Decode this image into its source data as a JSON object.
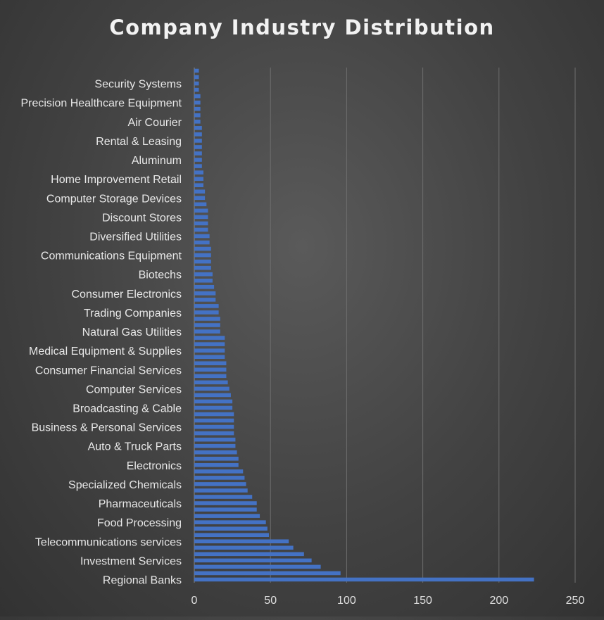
{
  "chart_data": {
    "type": "bar",
    "orientation": "horizontal",
    "title": "Company Industry Distribution",
    "xlabel": "",
    "ylabel": "",
    "xlim": [
      0,
      250
    ],
    "xticks": [
      0,
      50,
      100,
      150,
      200,
      250
    ],
    "grid": "vertical",
    "legend": "none",
    "bar_color": "#4472c4",
    "categories": [
      "Regional Banks",
      "",
      "",
      "Investment Services",
      "",
      "",
      "Telecommunications services",
      "",
      "",
      "Food Processing",
      "",
      "",
      "Pharmaceuticals",
      "",
      "",
      "Specialized Chemicals",
      "",
      "",
      "Electronics",
      "",
      "",
      "Auto & Truck Parts",
      "",
      "",
      "Business & Personal Services",
      "",
      "",
      "Broadcasting & Cable",
      "",
      "",
      "Computer Services",
      "",
      "",
      "Consumer Financial Services",
      "",
      "",
      "Medical Equipment & Supplies",
      "",
      "",
      "Natural Gas Utilities",
      "",
      "",
      "Trading Companies",
      "",
      "",
      "Consumer Electronics",
      "",
      "",
      "Biotechs",
      "",
      "",
      "Communications Equipment",
      "",
      "",
      "Diversified Utilities",
      "",
      "",
      "Discount Stores",
      "",
      "",
      "Computer Storage Devices",
      "",
      "",
      "Home Improvement Retail",
      "",
      "",
      "Aluminum",
      "",
      "",
      "Rental & Leasing",
      "",
      "",
      "Air Courier",
      "",
      "",
      "Precision Healthcare Equipment",
      "",
      "",
      "Security Systems",
      "",
      ""
    ],
    "values": [
      223,
      96,
      83,
      77,
      72,
      65,
      62,
      49,
      48,
      47,
      43,
      41,
      41,
      38,
      35,
      34,
      33,
      32,
      29,
      29,
      28,
      27,
      27,
      26,
      26,
      26,
      26,
      25,
      25,
      24,
      23,
      22,
      21,
      21,
      21,
      20,
      20,
      20,
      20,
      17,
      17,
      17,
      16,
      16,
      14,
      14,
      13,
      12,
      12,
      11,
      11,
      11,
      11,
      10,
      10,
      9,
      9,
      9,
      9,
      8,
      7,
      7,
      6,
      6,
      6,
      5,
      5,
      5,
      5,
      5,
      5,
      5,
      4,
      4,
      4,
      4,
      4,
      3,
      3,
      3,
      3
    ]
  }
}
